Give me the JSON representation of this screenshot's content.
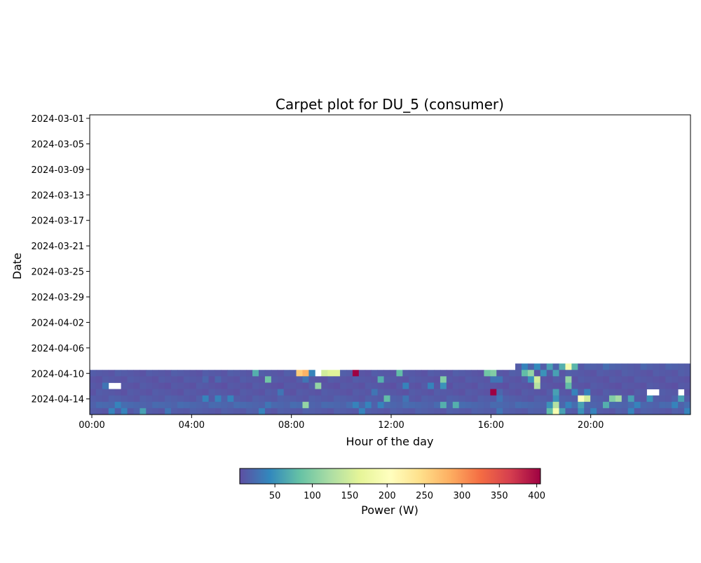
{
  "chart_data": {
    "type": "heatmap",
    "title": "Carpet plot for DU_5 (consumer)",
    "xlabel": "Hour of the day",
    "ylabel": "Date",
    "x_tick_labels": [
      "00:00",
      "04:00",
      "08:00",
      "12:00",
      "16:00",
      "20:00"
    ],
    "y_tick_labels": [
      "2024-03-01",
      "2024-03-05",
      "2024-03-09",
      "2024-03-13",
      "2024-03-17",
      "2024-03-21",
      "2024-03-25",
      "2024-03-29",
      "2024-04-02",
      "2024-04-06",
      "2024-04-10",
      "2024-04-14"
    ],
    "date_range": [
      "2024-03-01",
      "2024-04-16"
    ],
    "interval_minutes": 15,
    "colormap": "Spectral_r",
    "colorbar": {
      "label": "Power (W)",
      "ticks": [
        50,
        100,
        150,
        200,
        250,
        300,
        350,
        400
      ],
      "range": [
        3,
        405
      ]
    },
    "rows": [
      {
        "date": "2024-04-09",
        "start_hour": 17,
        "base": 14,
        "points": [
          [
            18.25,
            60
          ],
          [
            18.75,
            70
          ],
          [
            19,
            190
          ],
          [
            19.25,
            75
          ],
          [
            17.25,
            40
          ],
          [
            17.75,
            45
          ],
          [
            20.5,
            25
          ],
          [
            22,
            20
          ]
        ]
      },
      {
        "date": "2024-04-10",
        "start_hour": 0,
        "base": 10,
        "points": [
          [
            6.5,
            70
          ],
          [
            8.25,
            260
          ],
          [
            8.5,
            280
          ],
          [
            8.75,
            40
          ],
          [
            9.25,
            150
          ],
          [
            9.5,
            160
          ],
          [
            9.75,
            160
          ],
          [
            10.5,
            405
          ],
          [
            12.25,
            80
          ],
          [
            15.75,
            90
          ],
          [
            16,
            100
          ],
          [
            17.25,
            80
          ],
          [
            17.5,
            110
          ],
          [
            18,
            50
          ],
          [
            18.5,
            60
          ]
        ]
      },
      {
        "date": "2024-04-11",
        "start_hour": 0,
        "base": 9,
        "points": [
          [
            4.5,
            20
          ],
          [
            5,
            20
          ],
          [
            7,
            90
          ],
          [
            8.5,
            30
          ],
          [
            11.5,
            70
          ],
          [
            14,
            100
          ],
          [
            16,
            30
          ],
          [
            16.25,
            30
          ],
          [
            17.5,
            50
          ],
          [
            17.75,
            150
          ],
          [
            19,
            110
          ]
        ]
      },
      {
        "date": "2024-04-12",
        "start_hour": 0,
        "base": 8,
        "points": [
          [
            0.5,
            30
          ],
          [
            9,
            110
          ],
          [
            12.5,
            40
          ],
          [
            13.5,
            40
          ],
          [
            14,
            50
          ],
          [
            17.75,
            130
          ],
          [
            19,
            80
          ]
        ]
      },
      {
        "date": "2024-04-13",
        "start_hour": 0,
        "base": 9,
        "points": [
          [
            7.5,
            30
          ],
          [
            11.25,
            30
          ],
          [
            16,
            405
          ],
          [
            16.25,
            20
          ],
          [
            18.5,
            60
          ],
          [
            19.25,
            40
          ],
          [
            19.75,
            40
          ]
        ]
      },
      {
        "date": "2024-04-14",
        "start_hour": 0,
        "base": 12,
        "points": [
          [
            4.5,
            40
          ],
          [
            5,
            40
          ],
          [
            5.5,
            40
          ],
          [
            11.75,
            80
          ],
          [
            12.5,
            30
          ],
          [
            16.25,
            30
          ],
          [
            18.5,
            50
          ],
          [
            19.5,
            200
          ],
          [
            19.75,
            150
          ],
          [
            20.75,
            100
          ],
          [
            21,
            120
          ],
          [
            21.5,
            60
          ],
          [
            22.25,
            50
          ],
          [
            23.5,
            60
          ]
        ]
      },
      {
        "date": "2024-04-15",
        "start_hour": 0,
        "base": 20,
        "points": [
          [
            1,
            40
          ],
          [
            7,
            30
          ],
          [
            8.5,
            110
          ],
          [
            10.5,
            40
          ],
          [
            11,
            40
          ],
          [
            11.5,
            40
          ],
          [
            14,
            70
          ],
          [
            14.5,
            70
          ],
          [
            18.25,
            50
          ],
          [
            18.5,
            130
          ],
          [
            19,
            40
          ],
          [
            19.5,
            60
          ],
          [
            20.5,
            70
          ],
          [
            21.75,
            40
          ],
          [
            23.25,
            40
          ]
        ]
      },
      {
        "date": "2024-04-16",
        "start_hour": 0,
        "base": 12,
        "points": [
          [
            0.75,
            40
          ],
          [
            1.25,
            40
          ],
          [
            2,
            60
          ],
          [
            3,
            30
          ],
          [
            6.75,
            40
          ],
          [
            10.75,
            40
          ],
          [
            16.25,
            30
          ],
          [
            18.25,
            80
          ],
          [
            18.5,
            190
          ],
          [
            18.75,
            60
          ],
          [
            19.5,
            50
          ],
          [
            20,
            40
          ],
          [
            21.5,
            40
          ],
          [
            23.75,
            40
          ]
        ]
      }
    ],
    "missing": [
      {
        "date": "2024-04-10",
        "hour": 9.0
      },
      {
        "date": "2024-04-12",
        "hour": 0.75
      },
      {
        "date": "2024-04-12",
        "hour": 1.0
      },
      {
        "date": "2024-04-13",
        "hour": 22.25
      },
      {
        "date": "2024-04-13",
        "hour": 22.5
      },
      {
        "date": "2024-04-13",
        "hour": 23.5
      }
    ]
  }
}
